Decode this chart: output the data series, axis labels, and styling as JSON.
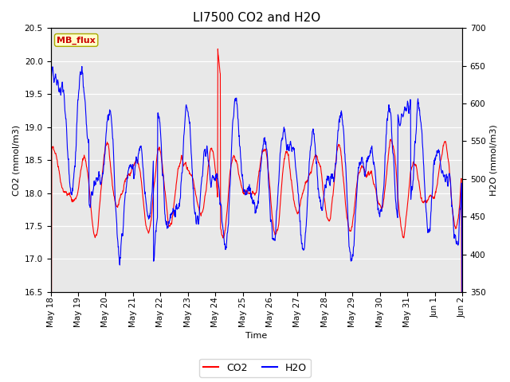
{
  "title": "LI7500 CO2 and H2O",
  "xlabel": "Time",
  "ylabel_left": "CO2 (mmol/m3)",
  "ylabel_right": "H2O (mmol/m3)",
  "ylim_left": [
    16.5,
    20.5
  ],
  "ylim_right": [
    350,
    700
  ],
  "co2_color": "#ff0000",
  "h2o_color": "#0000ff",
  "line_width": 0.8,
  "background_color": "#ffffff",
  "plot_bg_color": "#e8e8e8",
  "annotation_text": "MB_flux",
  "annotation_bg": "#ffffcc",
  "annotation_fg": "#cc0000",
  "x_tick_labels": [
    "May 18",
    "May 19",
    "May 20",
    "May 21",
    "May 22",
    "May 23",
    "May 24",
    "May 25",
    "May 26",
    "May 27",
    "May 28",
    "May 29",
    "May 30",
    "May 31",
    "Jun 1",
    "Jun 2"
  ],
  "n_points": 1500,
  "title_fontsize": 11,
  "axis_fontsize": 8,
  "tick_fontsize": 7.5
}
